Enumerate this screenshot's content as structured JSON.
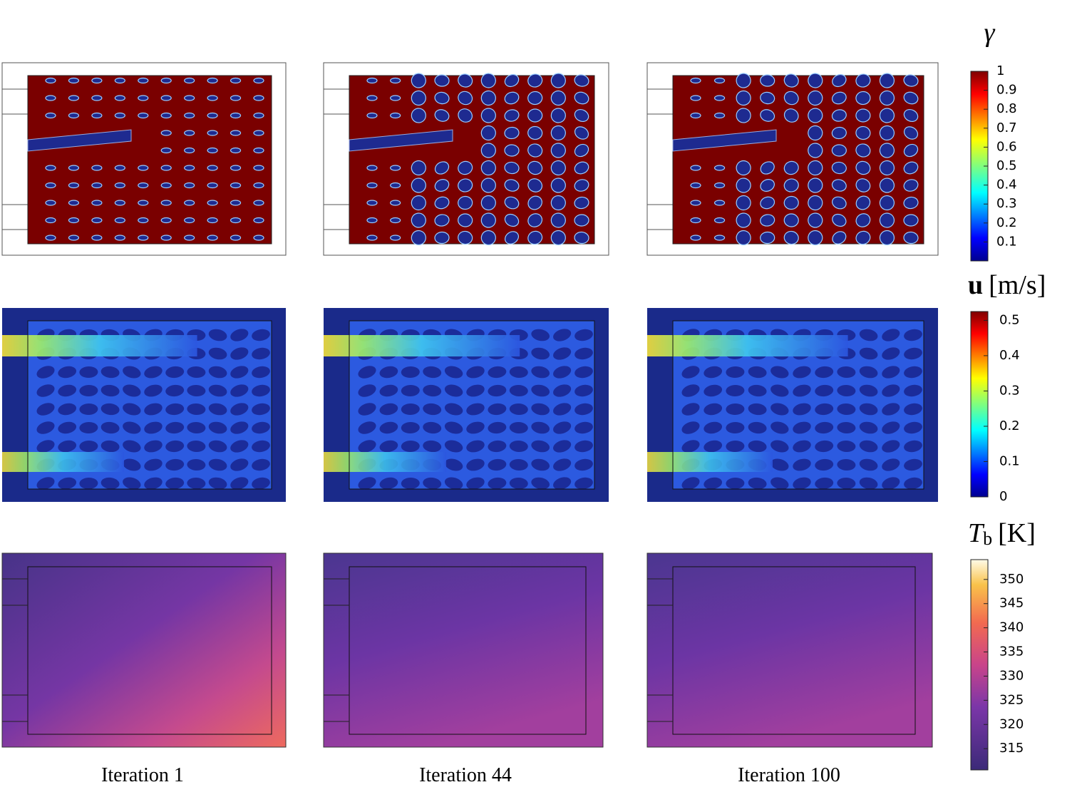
{
  "columns": [
    "Iteration 1",
    "Iteration 44",
    "Iteration 100"
  ],
  "colorbars": [
    {
      "symbol": "γ",
      "lim": [
        0,
        1
      ],
      "ticks": [
        1,
        0.9,
        0.8,
        0.7,
        0.6,
        0.5,
        0.4,
        0.3,
        0.2,
        0.1
      ]
    },
    {
      "symbol": "u",
      "unit": "[m/s]",
      "lim": [
        0,
        0.525
      ],
      "ticks": [
        0.5,
        0.4,
        0.3,
        0.2,
        0.1,
        0
      ]
    },
    {
      "symbol": "T",
      "subscript": "b",
      "unit": "[K]",
      "lim": [
        310.6,
        354.1
      ],
      "ticks": [
        350,
        345,
        340,
        335,
        330,
        325,
        320,
        315
      ]
    }
  ]
}
